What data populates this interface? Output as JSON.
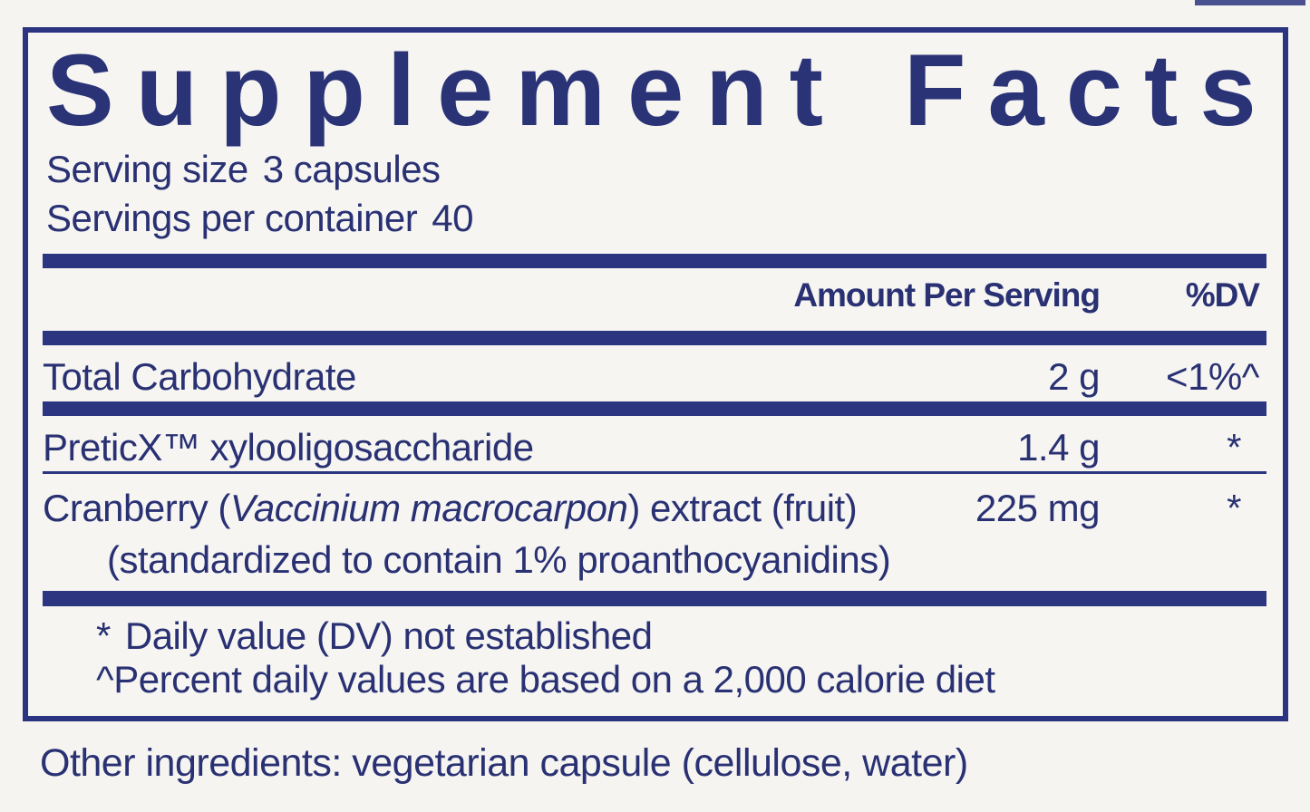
{
  "panel": {
    "title": "Supplement Facts",
    "serving_size_label": "Serving size",
    "serving_size_value": "3 capsules",
    "servings_per_container_label": "Servings per container",
    "servings_per_container_value": "40",
    "header": {
      "amount": "Amount Per Serving",
      "dv": "%DV"
    },
    "rows": [
      {
        "name": "Total Carbohydrate",
        "amount": "2 g",
        "dv": "<1%^"
      },
      {
        "name": "PreticX™ xylooligosaccharide",
        "amount": "1.4 g",
        "dv": "*"
      },
      {
        "name_prefix": "Cranberry (",
        "name_italic": "Vaccinium macrocarpon",
        "name_suffix": ") extract (fruit)",
        "name_line2": "(standardized to contain 1% proanthocyanidins)",
        "amount": "225 mg",
        "dv": "*"
      }
    ],
    "footnotes": [
      {
        "marker": "*",
        "text": "Daily value (DV) not established"
      },
      {
        "marker": "^",
        "text": "Percent daily values are based on a 2,000 calorie diet"
      }
    ]
  },
  "other_ingredients": "Other ingredients: vegetarian capsule (cellulose, water)",
  "colors": {
    "navy": "#2b3480",
    "text": "#293173",
    "background": "#f5f4f1"
  }
}
